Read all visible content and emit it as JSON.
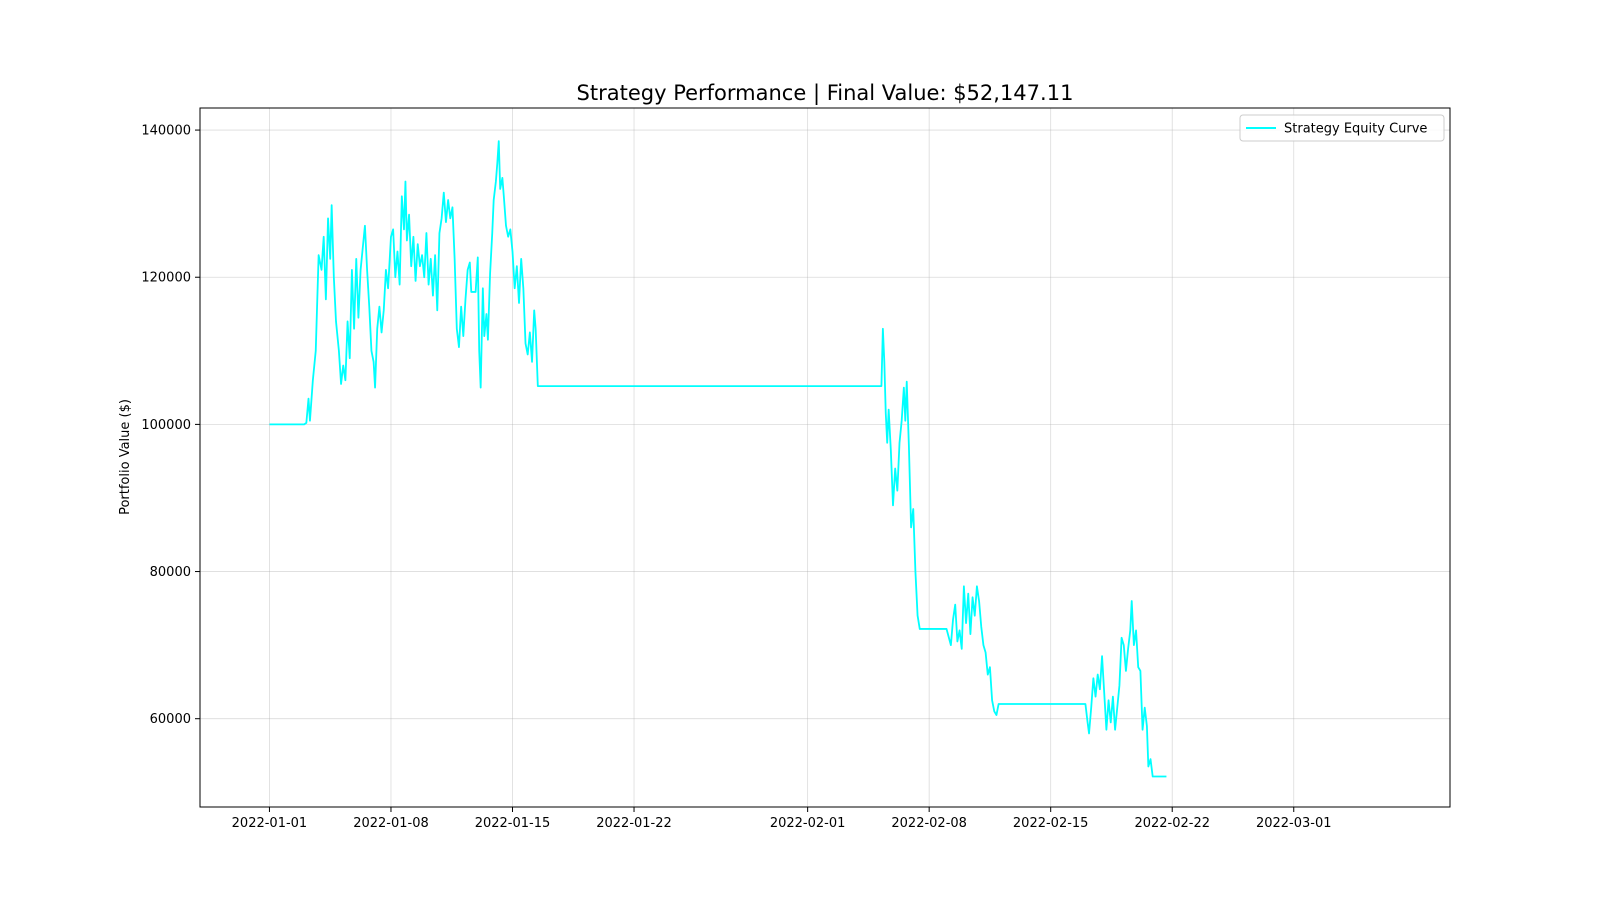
{
  "chart_data": {
    "type": "line",
    "title": "Strategy Performance | Final Value: $52,147.11",
    "xlabel": "",
    "ylabel": "Portfolio Value ($)",
    "xlim": [
      "2021-12-28",
      "2022-03-10"
    ],
    "ylim": [
      48000,
      143000
    ],
    "y_ticks": [
      60000,
      80000,
      100000,
      120000,
      140000
    ],
    "x_ticks": [
      "2022-01-01",
      "2022-01-08",
      "2022-01-15",
      "2022-01-22",
      "2022-02-01",
      "2022-02-08",
      "2022-02-15",
      "2022-02-22",
      "2022-03-01"
    ],
    "grid": true,
    "legend": {
      "position": "top-right"
    },
    "series": [
      {
        "name": "Strategy Equity Curve",
        "color": "#00ffff",
        "points": [
          [
            "2022-01-01",
            100000
          ],
          [
            "2022-01-02",
            100000
          ],
          [
            "2022-01-03",
            100000
          ],
          [
            "2022-01-03 03:00",
            100200
          ],
          [
            "2022-01-03 06:00",
            103500
          ],
          [
            "2022-01-03 08:00",
            100500
          ],
          [
            "2022-01-03 12:00",
            106000
          ],
          [
            "2022-01-03 16:00",
            110000
          ],
          [
            "2022-01-03 20:00",
            123000
          ],
          [
            "2022-01-04",
            121000
          ],
          [
            "2022-01-04 03:00",
            125500
          ],
          [
            "2022-01-04 06:00",
            117000
          ],
          [
            "2022-01-04 09:00",
            128000
          ],
          [
            "2022-01-04 12:00",
            122500
          ],
          [
            "2022-01-04 14:00",
            129800
          ],
          [
            "2022-01-04 17:00",
            120000
          ],
          [
            "2022-01-04 20:00",
            114000
          ],
          [
            "2022-01-05",
            110000
          ],
          [
            "2022-01-05 03:00",
            105500
          ],
          [
            "2022-01-05 06:00",
            108000
          ],
          [
            "2022-01-05 09:00",
            106000
          ],
          [
            "2022-01-05 12:00",
            114000
          ],
          [
            "2022-01-05 15:00",
            109000
          ],
          [
            "2022-01-05 18:00",
            121000
          ],
          [
            "2022-01-05 21:00",
            113000
          ],
          [
            "2022-01-06",
            122500
          ],
          [
            "2022-01-06 03:00",
            114500
          ],
          [
            "2022-01-06 06:00",
            121000
          ],
          [
            "2022-01-06 09:00",
            124000
          ],
          [
            "2022-01-06 12:00",
            127000
          ],
          [
            "2022-01-06 15:00",
            121000
          ],
          [
            "2022-01-06 18:00",
            116000
          ],
          [
            "2022-01-06 21:00",
            110000
          ],
          [
            "2022-01-07",
            108500
          ],
          [
            "2022-01-07 02:00",
            105000
          ],
          [
            "2022-01-07 05:00",
            113000
          ],
          [
            "2022-01-07 08:00",
            116000
          ],
          [
            "2022-01-07 11:00",
            112500
          ],
          [
            "2022-01-07 14:00",
            115500
          ],
          [
            "2022-01-07 17:00",
            121000
          ],
          [
            "2022-01-07 20:00",
            118500
          ],
          [
            "2022-01-08",
            125500
          ],
          [
            "2022-01-08 03:00",
            126500
          ],
          [
            "2022-01-08 06:00",
            120000
          ],
          [
            "2022-01-08 09:00",
            123500
          ],
          [
            "2022-01-08 12:00",
            119000
          ],
          [
            "2022-01-08 15:00",
            131000
          ],
          [
            "2022-01-08 18:00",
            126500
          ],
          [
            "2022-01-08 20:00",
            133000
          ],
          [
            "2022-01-08 22:00",
            125000
          ],
          [
            "2022-01-09 01:00",
            128500
          ],
          [
            "2022-01-09 04:00",
            121500
          ],
          [
            "2022-01-09 07:00",
            125500
          ],
          [
            "2022-01-09 10:00",
            119500
          ],
          [
            "2022-01-09 13:00",
            124500
          ],
          [
            "2022-01-09 16:00",
            121500
          ],
          [
            "2022-01-09 19:00",
            123000
          ],
          [
            "2022-01-09 22:00",
            120000
          ],
          [
            "2022-01-10 01:00",
            126000
          ],
          [
            "2022-01-10 04:00",
            119000
          ],
          [
            "2022-01-10 07:00",
            122500
          ],
          [
            "2022-01-10 10:00",
            117500
          ],
          [
            "2022-01-10 13:00",
            123000
          ],
          [
            "2022-01-10 16:00",
            115500
          ],
          [
            "2022-01-10 19:00",
            126000
          ],
          [
            "2022-01-10 22:00",
            128000
          ],
          [
            "2022-01-11 01:00",
            131500
          ],
          [
            "2022-01-11 04:00",
            127500
          ],
          [
            "2022-01-11 07:00",
            130500
          ],
          [
            "2022-01-11 10:00",
            128000
          ],
          [
            "2022-01-11 13:00",
            129500
          ],
          [
            "2022-01-11 16:00",
            122500
          ],
          [
            "2022-01-11 19:00",
            113000
          ],
          [
            "2022-01-11 22:00",
            110500
          ],
          [
            "2022-01-12 01:00",
            116000
          ],
          [
            "2022-01-12 04:00",
            112000
          ],
          [
            "2022-01-12 07:00",
            117000
          ],
          [
            "2022-01-12 10:00",
            121000
          ],
          [
            "2022-01-12 13:00",
            122000
          ],
          [
            "2022-01-12 15:00",
            118000
          ],
          [
            "2022-01-12 18:00",
            118000
          ],
          [
            "2022-01-12 21:00",
            118000
          ],
          [
            "2022-01-13",
            122700
          ],
          [
            "2022-01-13 02:00",
            110000
          ],
          [
            "2022-01-13 04:00",
            105000
          ],
          [
            "2022-01-13 07:00",
            118500
          ],
          [
            "2022-01-13 09:00",
            112000
          ],
          [
            "2022-01-13 12:00",
            115000
          ],
          [
            "2022-01-13 14:00",
            111500
          ],
          [
            "2022-01-13 17:00",
            120500
          ],
          [
            "2022-01-13 20:00",
            126000
          ],
          [
            "2022-01-13 22:00",
            130500
          ],
          [
            "2022-01-14 01:00",
            133000
          ],
          [
            "2022-01-14 03:00",
            135500
          ],
          [
            "2022-01-14 05:00",
            138500
          ],
          [
            "2022-01-14 07:00",
            132000
          ],
          [
            "2022-01-14 10:00",
            133500
          ],
          [
            "2022-01-14 12:00",
            131000
          ],
          [
            "2022-01-14 15:00",
            127000
          ],
          [
            "2022-01-14 18:00",
            125500
          ],
          [
            "2022-01-14 21:00",
            126500
          ],
          [
            "2022-01-15",
            123500
          ],
          [
            "2022-01-15 03:00",
            118500
          ],
          [
            "2022-01-15 06:00",
            121500
          ],
          [
            "2022-01-15 09:00",
            116500
          ],
          [
            "2022-01-15 12:00",
            122500
          ],
          [
            "2022-01-15 15:00",
            118500
          ],
          [
            "2022-01-15 18:00",
            111000
          ],
          [
            "2022-01-15 21:00",
            109500
          ],
          [
            "2022-01-16",
            112500
          ],
          [
            "2022-01-16 03:00",
            108500
          ],
          [
            "2022-01-16 06:00",
            115500
          ],
          [
            "2022-01-16 08:00",
            113000
          ],
          [
            "2022-01-16 11:00",
            105200
          ],
          [
            "2022-01-17",
            105200
          ],
          [
            "2022-01-20",
            105200
          ],
          [
            "2022-01-25",
            105200
          ],
          [
            "2022-01-30",
            105200
          ],
          [
            "2022-02-04",
            105200
          ],
          [
            "2022-02-05 06:00",
            105200
          ],
          [
            "2022-02-05 08:00",
            113000
          ],
          [
            "2022-02-05 10:00",
            108500
          ],
          [
            "2022-02-05 12:00",
            101500
          ],
          [
            "2022-02-05 14:00",
            97500
          ],
          [
            "2022-02-05 16:00",
            102000
          ],
          [
            "2022-02-05 19:00",
            96500
          ],
          [
            "2022-02-05 22:00",
            89000
          ],
          [
            "2022-02-06 01:00",
            94000
          ],
          [
            "2022-02-06 04:00",
            91000
          ],
          [
            "2022-02-06 07:00",
            97500
          ],
          [
            "2022-02-06 10:00",
            100500
          ],
          [
            "2022-02-06 13:00",
            105000
          ],
          [
            "2022-02-06 15:00",
            100500
          ],
          [
            "2022-02-06 17:00",
            105800
          ],
          [
            "2022-02-06 20:00",
            97000
          ],
          [
            "2022-02-06 23:00",
            86000
          ],
          [
            "2022-02-07 02:00",
            88500
          ],
          [
            "2022-02-07 05:00",
            80000
          ],
          [
            "2022-02-07 08:00",
            74000
          ],
          [
            "2022-02-07 11:00",
            72200
          ],
          [
            "2022-02-08",
            72200
          ],
          [
            "2022-02-09",
            72200
          ],
          [
            "2022-02-09 06:00",
            70000
          ],
          [
            "2022-02-09 09:00",
            73500
          ],
          [
            "2022-02-09 12:00",
            75500
          ],
          [
            "2022-02-09 15:00",
            70500
          ],
          [
            "2022-02-09 18:00",
            72000
          ],
          [
            "2022-02-09 21:00",
            69500
          ],
          [
            "2022-02-10",
            78000
          ],
          [
            "2022-02-10 03:00",
            73000
          ],
          [
            "2022-02-10 06:00",
            77000
          ],
          [
            "2022-02-10 09:00",
            71500
          ],
          [
            "2022-02-10 12:00",
            76500
          ],
          [
            "2022-02-10 15:00",
            74000
          ],
          [
            "2022-02-10 18:00",
            78000
          ],
          [
            "2022-02-10 21:00",
            76000
          ],
          [
            "2022-02-11",
            72500
          ],
          [
            "2022-02-11 03:00",
            70000
          ],
          [
            "2022-02-11 06:00",
            69000
          ],
          [
            "2022-02-11 09:00",
            66000
          ],
          [
            "2022-02-11 12:00",
            67000
          ],
          [
            "2022-02-11 15:00",
            62500
          ],
          [
            "2022-02-11 18:00",
            61000
          ],
          [
            "2022-02-11 21:00",
            60500
          ],
          [
            "2022-02-12",
            62000
          ],
          [
            "2022-02-14",
            62000
          ],
          [
            "2022-02-16",
            62000
          ],
          [
            "2022-02-17",
            62000
          ],
          [
            "2022-02-17 03:00",
            59500
          ],
          [
            "2022-02-17 05:00",
            58000
          ],
          [
            "2022-02-17 08:00",
            61500
          ],
          [
            "2022-02-17 11:00",
            65500
          ],
          [
            "2022-02-17 14:00",
            63000
          ],
          [
            "2022-02-17 17:00",
            66000
          ],
          [
            "2022-02-17 20:00",
            64000
          ],
          [
            "2022-02-17 23:00",
            68500
          ],
          [
            "2022-02-18 02:00",
            63500
          ],
          [
            "2022-02-18 05:00",
            58500
          ],
          [
            "2022-02-18 08:00",
            62500
          ],
          [
            "2022-02-18 11:00",
            59500
          ],
          [
            "2022-02-18 14:00",
            63000
          ],
          [
            "2022-02-18 17:00",
            58500
          ],
          [
            "2022-02-18 20:00",
            61500
          ],
          [
            "2022-02-18 23:00",
            64500
          ],
          [
            "2022-02-19 02:00",
            71000
          ],
          [
            "2022-02-19 05:00",
            70000
          ],
          [
            "2022-02-19 08:00",
            66500
          ],
          [
            "2022-02-19 11:00",
            69500
          ],
          [
            "2022-02-19 14:00",
            72000
          ],
          [
            "2022-02-19 16:00",
            76000
          ],
          [
            "2022-02-19 19:00",
            70000
          ],
          [
            "2022-02-19 22:00",
            72000
          ],
          [
            "2022-02-20 01:00",
            67000
          ],
          [
            "2022-02-20 04:00",
            66500
          ],
          [
            "2022-02-20 07:00",
            58500
          ],
          [
            "2022-02-20 10:00",
            61500
          ],
          [
            "2022-02-20 13:00",
            59000
          ],
          [
            "2022-02-20 15:00",
            53500
          ],
          [
            "2022-02-20 18:00",
            54500
          ],
          [
            "2022-02-20 21:00",
            52147
          ],
          [
            "2022-02-21 06:00",
            52147
          ],
          [
            "2022-02-21 16:00",
            52147
          ]
        ]
      }
    ]
  }
}
